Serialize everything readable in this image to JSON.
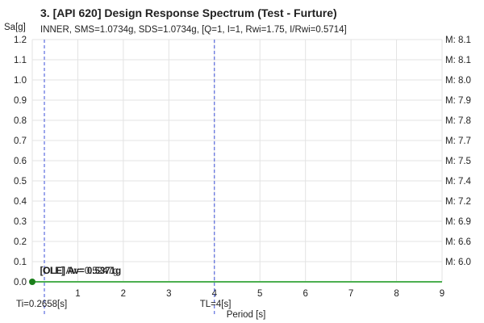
{
  "chart_data": {
    "type": "line",
    "title": "3. [API 620] Design Response Spectrum (Test - Furture)",
    "subtitle": "INNER, SMS=1.0734g, SDS=1.0734g, [Q=1, I=1, Rwi=1.75, I/Rwi=0.5714]",
    "ylabel": "Sa[g]",
    "xlabel": "Period [s]",
    "xlim": [
      0,
      9
    ],
    "ylim": [
      0,
      1.2
    ],
    "x_ticks": [
      1,
      2,
      3,
      4,
      5,
      6,
      7,
      8,
      9
    ],
    "y_ticks": [
      "0.0",
      "0.1",
      "0.2",
      "0.3",
      "0.4",
      "0.5",
      "0.6",
      "0.7",
      "0.8",
      "0.9",
      "1.0",
      "1.1",
      "1.2"
    ],
    "grid": true,
    "right_axis_labels": [
      {
        "label": "M: 8.1",
        "y": 1.2
      },
      {
        "label": "M: 8.1",
        "y": 1.1
      },
      {
        "label": "M: 8.0",
        "y": 1.0
      },
      {
        "label": "M: 7.9",
        "y": 0.9
      },
      {
        "label": "M: 7.8",
        "y": 0.8
      },
      {
        "label": "M: 7.7",
        "y": 0.7
      },
      {
        "label": "M: 7.5",
        "y": 0.6
      },
      {
        "label": "M: 7.4",
        "y": 0.5
      },
      {
        "label": "M: 7.2",
        "y": 0.4
      },
      {
        "label": "M: 6.9",
        "y": 0.3
      },
      {
        "label": "M: 6.6",
        "y": 0.2
      },
      {
        "label": "M: 6.0",
        "y": 0.1
      }
    ],
    "series": [
      {
        "values_x": [
          0,
          9
        ],
        "values_y": [
          0,
          0
        ],
        "color": "#4caf50"
      }
    ],
    "points": [
      {
        "x": 0,
        "y": 0,
        "color": "#1b7f1b"
      }
    ],
    "vlines": [
      {
        "x": 0.2658,
        "label": "Ti=0.2658[s]",
        "color": "#3b4fd8"
      },
      {
        "x": 4,
        "label": "TL=4[s]",
        "color": "#3b4fd8"
      }
    ],
    "annotations": [
      {
        "text": "[OLE] Av= 0.5247g",
        "x": 0.1,
        "y": 0.04,
        "bold": false
      },
      {
        "text": "[OLE] Av= 0.5371g",
        "x": 0.1,
        "y": 0.04,
        "bold": true
      }
    ]
  }
}
